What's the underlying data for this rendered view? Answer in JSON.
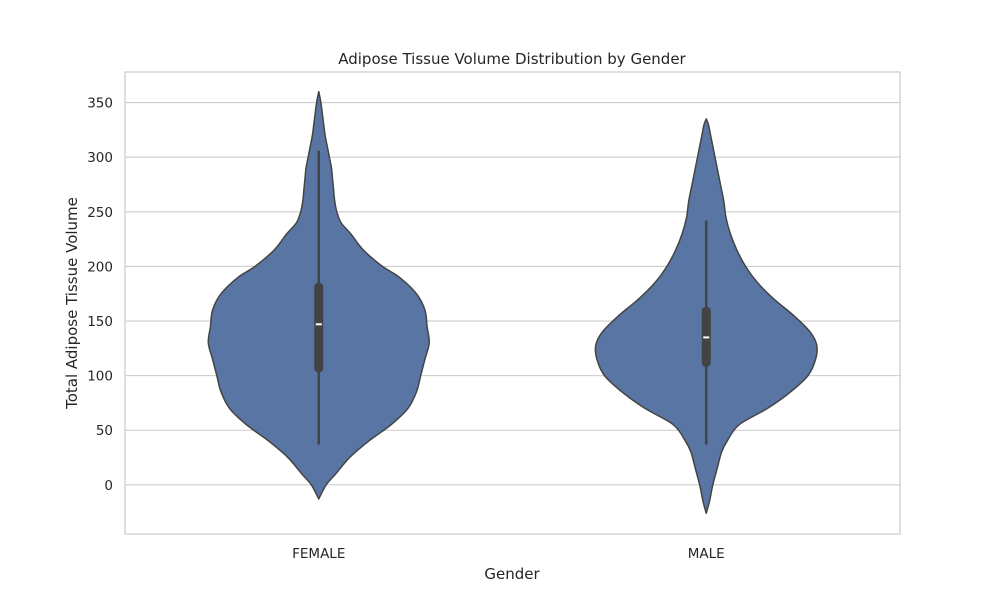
{
  "chart_data": {
    "type": "violin",
    "title": "Adipose Tissue Volume Distribution by Gender",
    "xlabel": "Gender",
    "ylabel": "Total Adipose Tissue Volume",
    "categories": [
      "FEMALE",
      "MALE"
    ],
    "ylim": [
      -45,
      378
    ],
    "yticks": [
      0,
      50,
      100,
      150,
      200,
      250,
      300,
      350
    ],
    "grid": true,
    "colors": {
      "body": "#5875a4",
      "edge": "#444444",
      "box": "#434343",
      "median": "#ffffff",
      "grid": "#cccccc",
      "frame": "#cccccc"
    },
    "violins": [
      {
        "category": "FEMALE",
        "density_profile": [
          [
            -13,
            0.0
          ],
          [
            0,
            0.07
          ],
          [
            10,
            0.16
          ],
          [
            25,
            0.29
          ],
          [
            40,
            0.47
          ],
          [
            55,
            0.68
          ],
          [
            70,
            0.84
          ],
          [
            85,
            0.92
          ],
          [
            100,
            0.96
          ],
          [
            115,
            1.0
          ],
          [
            130,
            1.04
          ],
          [
            145,
            1.02
          ],
          [
            160,
            1.0
          ],
          [
            175,
            0.92
          ],
          [
            190,
            0.76
          ],
          [
            200,
            0.6
          ],
          [
            215,
            0.42
          ],
          [
            230,
            0.3
          ],
          [
            240,
            0.21
          ],
          [
            250,
            0.17
          ],
          [
            260,
            0.15
          ],
          [
            270,
            0.14
          ],
          [
            280,
            0.13
          ],
          [
            290,
            0.12
          ],
          [
            300,
            0.1
          ],
          [
            310,
            0.08
          ],
          [
            320,
            0.06
          ],
          [
            335,
            0.04
          ],
          [
            350,
            0.02
          ],
          [
            360,
            0.0
          ]
        ],
        "whisker_low": 37,
        "q1": 103,
        "median": 147,
        "q3": 185,
        "whisker_high": 306
      },
      {
        "category": "MALE",
        "density_profile": [
          [
            -26,
            0.0
          ],
          [
            -15,
            0.03
          ],
          [
            0,
            0.06
          ],
          [
            15,
            0.1
          ],
          [
            30,
            0.14
          ],
          [
            40,
            0.19
          ],
          [
            55,
            0.3
          ],
          [
            70,
            0.56
          ],
          [
            85,
            0.77
          ],
          [
            100,
            0.93
          ],
          [
            115,
            1.0
          ],
          [
            128,
            1.01
          ],
          [
            140,
            0.95
          ],
          [
            155,
            0.8
          ],
          [
            170,
            0.62
          ],
          [
            185,
            0.47
          ],
          [
            200,
            0.36
          ],
          [
            215,
            0.28
          ],
          [
            230,
            0.22
          ],
          [
            245,
            0.18
          ],
          [
            260,
            0.16
          ],
          [
            275,
            0.13
          ],
          [
            290,
            0.1
          ],
          [
            305,
            0.07
          ],
          [
            320,
            0.04
          ],
          [
            330,
            0.02
          ],
          [
            335,
            0.0
          ]
        ],
        "whisker_low": 37,
        "q1": 108,
        "median": 135,
        "q3": 163,
        "whisker_high": 242
      }
    ]
  }
}
